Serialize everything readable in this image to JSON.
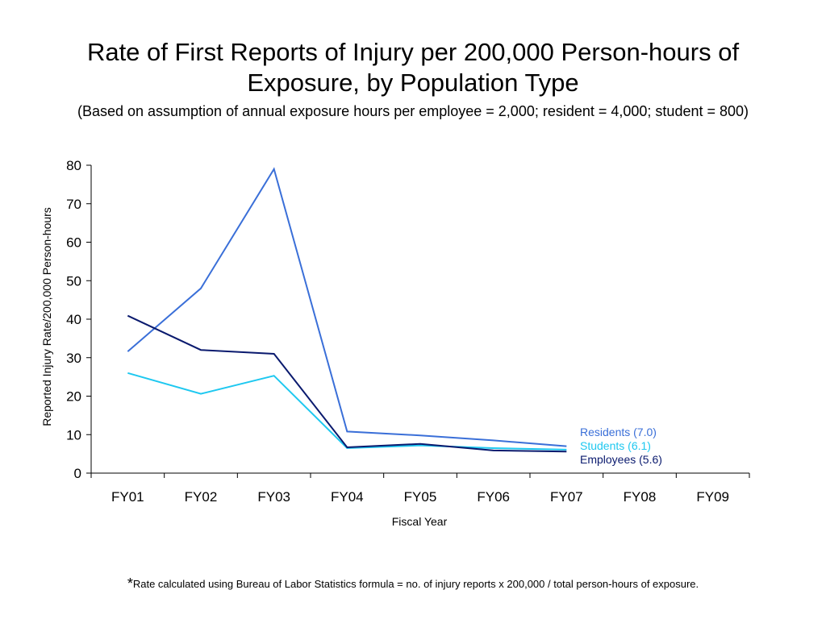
{
  "title_line1": "Rate of First Reports of Injury per 200,000 Person-hours of",
  "title_line2": "Exposure, by Population Type",
  "subtitle": "(Based on assumption of annual exposure hours per employee = 2,000; resident = 4,000; student = 800)",
  "footnote_star": "*",
  "footnote": "Rate calculated using Bureau of Labor Statistics formula = no. of injury reports x 200,000 / total person-hours of exposure.",
  "chart_data": {
    "type": "line",
    "xlabel": "Fiscal Year",
    "ylabel": "Reported Injury Rate/200,000 Person-hours",
    "categories": [
      "FY01",
      "FY02",
      "FY03",
      "FY04",
      "FY05",
      "FY06",
      "FY07",
      "FY08",
      "FY09"
    ],
    "ylim": [
      0,
      80
    ],
    "yticks": [
      0,
      10,
      20,
      30,
      40,
      50,
      60,
      70,
      80
    ],
    "grid": false,
    "legend": "right, next to last data points",
    "series": [
      {
        "name": "Residents (7.0)",
        "color": "#3a6fd8",
        "values": [
          31.6,
          48.0,
          79.0,
          10.8,
          9.8,
          8.5,
          7.0,
          null,
          null
        ]
      },
      {
        "name": "Students (6.1)",
        "color": "#1ec8f0",
        "values": [
          26.0,
          20.6,
          25.3,
          6.5,
          7.2,
          6.5,
          6.1,
          null,
          null
        ]
      },
      {
        "name": "Employees (5.6)",
        "color": "#0a1a6e",
        "values": [
          40.9,
          32.0,
          31.0,
          6.7,
          7.6,
          5.9,
          5.6,
          null,
          null
        ]
      }
    ]
  }
}
